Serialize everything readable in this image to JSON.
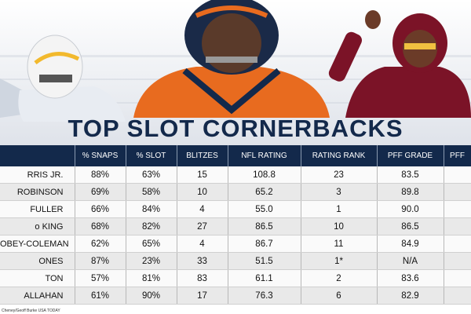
{
  "header": {
    "title": "TOP SLOT CORNERBACKS"
  },
  "table": {
    "headers": [
      "% SNAPS",
      "% SLOT",
      "BLITZES",
      "NFL RATING",
      "RATING RANK",
      "PFF GRADE",
      "PFF"
    ],
    "rows": [
      [
        "RRIS JR.",
        "88%",
        "63%",
        "15",
        "108.8",
        "23",
        "83.5"
      ],
      [
        "ROBINSON",
        "69%",
        "58%",
        "10",
        "65.2",
        "3",
        "89.8"
      ],
      [
        "FULLER",
        "66%",
        "84%",
        "4",
        "55.0",
        "1",
        "90.0"
      ],
      [
        "o KING",
        "68%",
        "82%",
        "27",
        "86.5",
        "10",
        "86.5"
      ],
      [
        "OBEY-COLEMAN",
        "62%",
        "65%",
        "4",
        "86.7",
        "11",
        "84.9"
      ],
      [
        "ONES",
        "87%",
        "23%",
        "33",
        "51.5",
        "1*",
        "N/A"
      ],
      [
        "TON",
        "57%",
        "81%",
        "83",
        "61.1",
        "2",
        "83.6"
      ],
      [
        "ALLAHAN",
        "61%",
        "90%",
        "17",
        "76.3",
        "6",
        "82.9"
      ]
    ]
  },
  "footer": {
    "credit": "Cheney/Geoff Burke USA TODAY"
  }
}
